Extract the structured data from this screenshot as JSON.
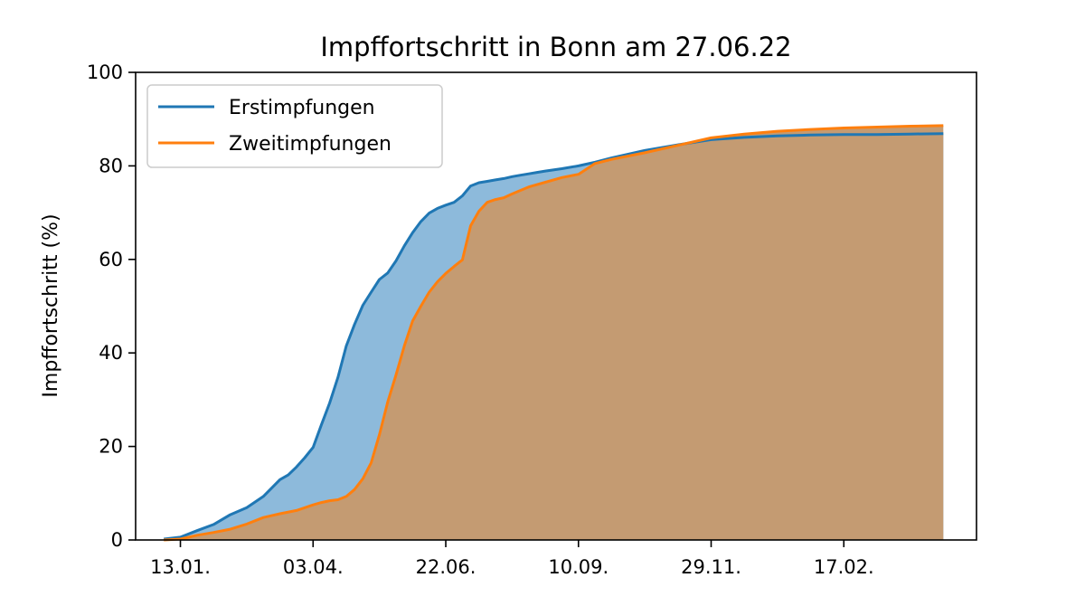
{
  "chart_data": {
    "type": "area",
    "title": "Impffortschritt in Bonn am 27.06.22",
    "xlabel": "",
    "ylabel": "Impffortschritt (%)",
    "ylim": [
      0,
      100
    ],
    "yticks": [
      0,
      20,
      40,
      60,
      80,
      100
    ],
    "x_tick_labels": [
      "13.01.",
      "03.04.",
      "22.06.",
      "10.09.",
      "29.11.",
      "17.02."
    ],
    "x_tick_days": [
      0,
      80,
      160,
      240,
      320,
      400
    ],
    "xlim_days": [
      -27,
      480
    ],
    "legend_position": "top-left",
    "grid": false,
    "series": [
      {
        "name": "Erstimpfungen",
        "color": "#1f77b4",
        "fill_color": "#8dbadb",
        "x_days": [
          -10,
          0,
          10,
          20,
          30,
          40,
          50,
          60,
          65,
          70,
          75,
          80,
          85,
          90,
          95,
          100,
          105,
          110,
          115,
          120,
          125,
          130,
          135,
          140,
          145,
          150,
          155,
          160,
          165,
          170,
          175,
          180,
          185,
          190,
          195,
          200,
          205,
          210,
          215,
          220,
          230,
          240,
          250,
          260,
          280,
          300,
          320,
          340,
          360,
          380,
          400,
          420,
          440,
          460
        ],
        "values": [
          0.2,
          0.6,
          2.0,
          3.3,
          5.4,
          6.9,
          9.3,
          12.9,
          13.9,
          15.6,
          17.6,
          19.8,
          24.6,
          29.3,
          34.8,
          41.5,
          46.1,
          50.2,
          53.0,
          55.7,
          57.1,
          59.7,
          62.9,
          65.7,
          68.1,
          69.9,
          70.9,
          71.6,
          72.2,
          73.6,
          75.7,
          76.4,
          76.7,
          77.0,
          77.3,
          77.7,
          78.0,
          78.3,
          78.6,
          78.9,
          79.4,
          80.0,
          80.8,
          81.7,
          83.3,
          84.5,
          85.6,
          86.1,
          86.4,
          86.6,
          86.7,
          86.7,
          86.8,
          86.9
        ]
      },
      {
        "name": "Zweitimpfungen",
        "color": "#ff7f0e",
        "fill_color": "#c49b72",
        "x_days": [
          -10,
          0,
          10,
          20,
          30,
          40,
          50,
          60,
          70,
          80,
          85,
          90,
          95,
          100,
          105,
          110,
          115,
          120,
          125,
          130,
          135,
          140,
          145,
          150,
          155,
          160,
          165,
          170,
          175,
          180,
          185,
          190,
          195,
          200,
          210,
          220,
          230,
          240,
          250,
          260,
          280,
          300,
          320,
          340,
          360,
          380,
          400,
          420,
          440,
          460
        ],
        "values": [
          0.0,
          0.2,
          1.0,
          1.6,
          2.3,
          3.4,
          4.8,
          5.6,
          6.3,
          7.5,
          8.0,
          8.4,
          8.6,
          9.3,
          10.8,
          13.1,
          16.5,
          22.5,
          29.5,
          35.3,
          41.5,
          46.8,
          50.0,
          53.0,
          55.2,
          57.0,
          58.5,
          59.9,
          67.2,
          70.3,
          72.2,
          72.8,
          73.2,
          74.0,
          75.5,
          76.5,
          77.5,
          78.2,
          80.5,
          81.4,
          82.8,
          84.4,
          86.0,
          86.8,
          87.4,
          87.8,
          88.1,
          88.3,
          88.5,
          88.6
        ]
      }
    ]
  }
}
